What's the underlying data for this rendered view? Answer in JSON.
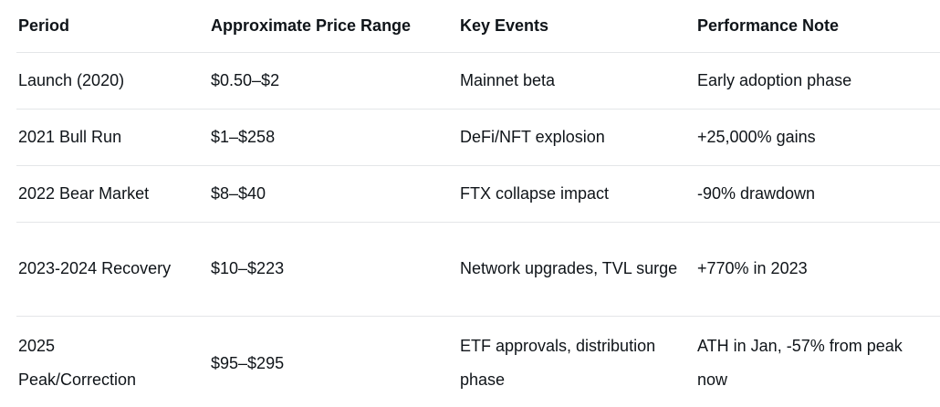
{
  "table": {
    "columns": [
      {
        "key": "period",
        "label": "Period"
      },
      {
        "key": "price_range",
        "label": "Approximate Price Range"
      },
      {
        "key": "key_events",
        "label": "Key Events"
      },
      {
        "key": "performance_note",
        "label": "Performance Note"
      }
    ],
    "rows": [
      {
        "period": "Launch (2020)",
        "price_range": "$0.50–$2",
        "key_events": "Mainnet beta",
        "performance_note": "Early adoption phase"
      },
      {
        "period": "2021 Bull Run",
        "price_range": "$1–$258",
        "key_events": "DeFi/NFT explosion",
        "performance_note": "+25,000% gains"
      },
      {
        "period": "2022 Bear Market",
        "price_range": "$8–$40",
        "key_events": "FTX collapse impact",
        "performance_note": "-90% drawdown"
      },
      {
        "period": "2023-2024 Recovery",
        "price_range": "$10–$223",
        "key_events": "Network upgrades, TVL surge",
        "performance_note": "+770% in 2023"
      },
      {
        "period": "2025 Peak/Correction",
        "price_range": "$95–$295",
        "key_events": "ETF approvals, distribution phase",
        "performance_note": "ATH in Jan, -57% from peak now"
      }
    ],
    "colors": {
      "text": "#0f1419",
      "divider": "#e4e6e8",
      "background": "#ffffff"
    }
  },
  "chart_data": {
    "type": "table",
    "title": "",
    "columns": [
      "Period",
      "Approximate Price Range",
      "Key Events",
      "Performance Note"
    ],
    "rows": [
      [
        "Launch (2020)",
        "$0.50–$2",
        "Mainnet beta",
        "Early adoption phase"
      ],
      [
        "2021 Bull Run",
        "$1–$258",
        "DeFi/NFT explosion",
        "+25,000% gains"
      ],
      [
        "2022 Bear Market",
        "$8–$40",
        "FTX collapse impact",
        "-90% drawdown"
      ],
      [
        "2023-2024 Recovery",
        "$10–$223",
        "Network upgrades, TVL surge",
        "+770% in 2023"
      ],
      [
        "2025 Peak/Correction",
        "$95–$295",
        "ETF approvals, distribution phase",
        "ATH in Jan, -57% from peak now"
      ]
    ]
  }
}
